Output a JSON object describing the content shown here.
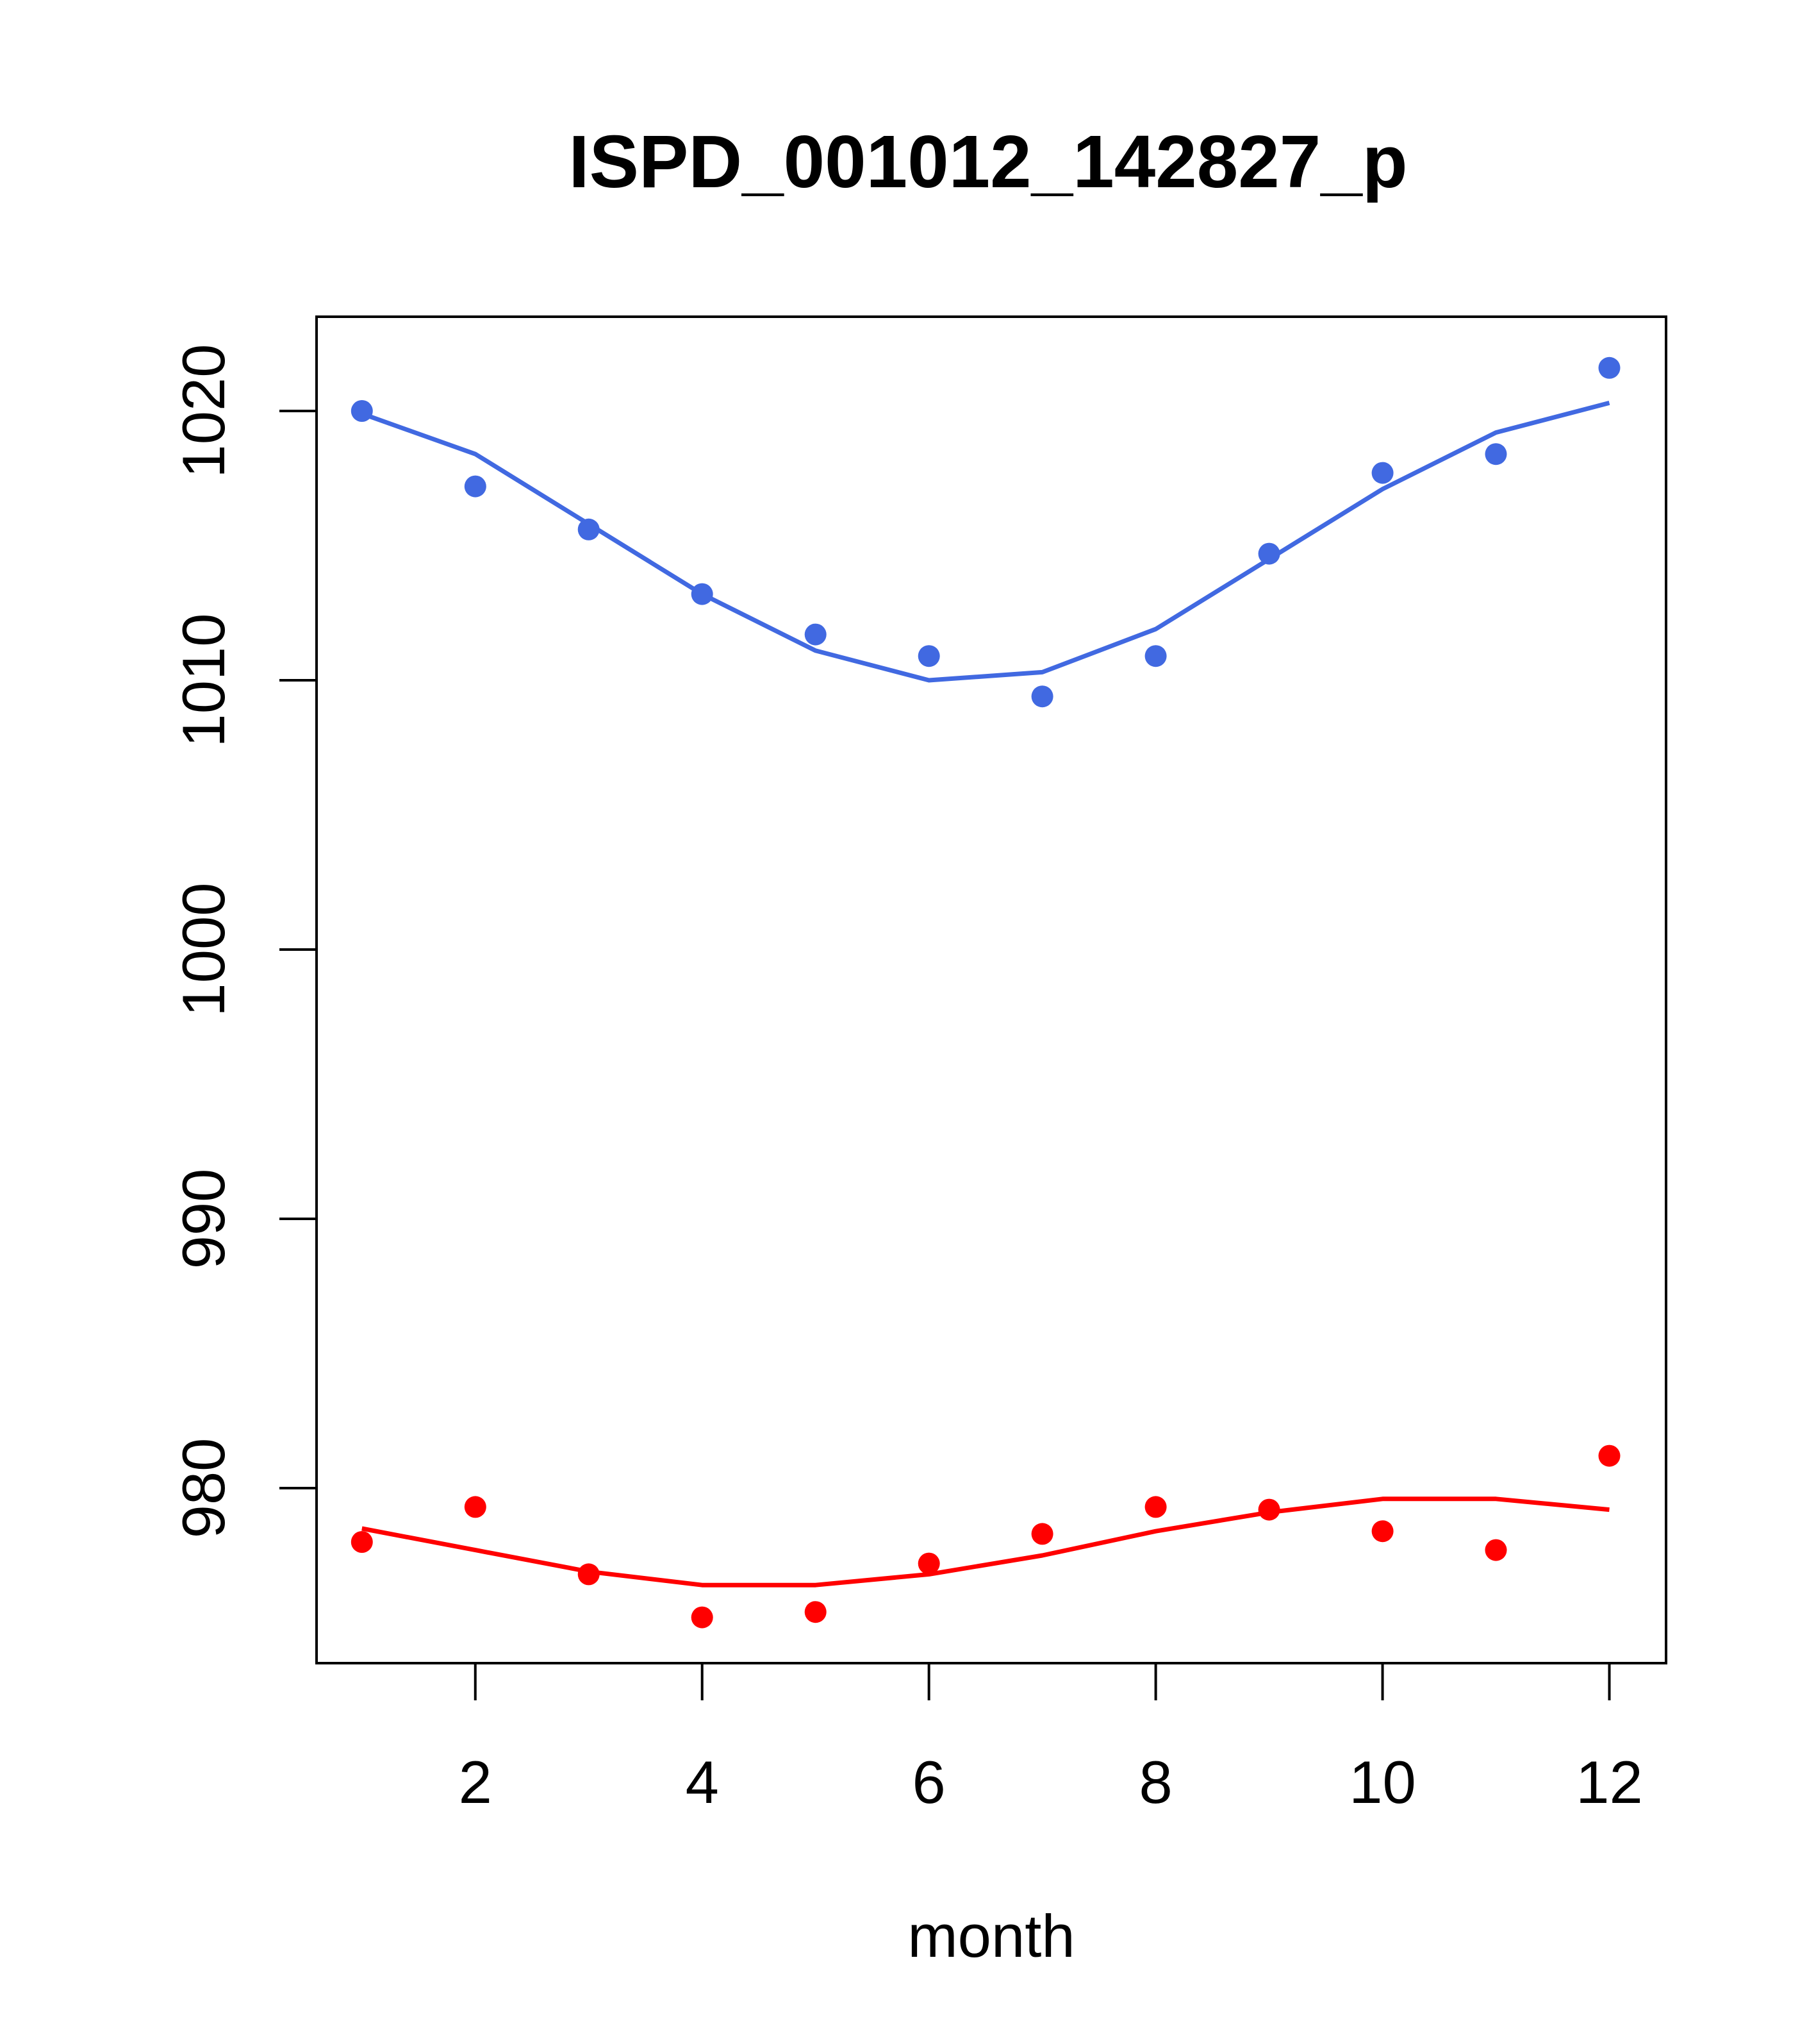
{
  "chart_data": {
    "type": "scatter",
    "title": "ISPD_001012_142827_p",
    "xlabel": "month",
    "ylabel": "",
    "xlim": [
      0.6,
      12.5
    ],
    "ylim": [
      973.5,
      1023.5
    ],
    "xticks": [
      2,
      4,
      6,
      8,
      10,
      12
    ],
    "yticks": [
      980,
      990,
      1000,
      1010,
      1020
    ],
    "grid": false,
    "legend": "none",
    "series": [
      {
        "color": "#4169E1",
        "points_x": [
          1,
          2,
          3,
          4,
          5,
          6,
          7,
          8,
          9,
          10,
          11,
          12
        ],
        "points_y": [
          1020.0,
          1017.2,
          1015.6,
          1013.2,
          1011.7,
          1010.9,
          1009.4,
          1010.9,
          1014.7,
          1017.7,
          1018.4,
          1021.6
        ],
        "line_x": [
          1,
          2,
          3,
          4,
          5,
          6,
          7,
          8,
          9,
          10,
          11,
          12
        ],
        "line_y": [
          1019.9,
          1018.4,
          1015.8,
          1013.2,
          1011.1,
          1010.0,
          1010.3,
          1011.9,
          1014.5,
          1017.1,
          1019.2,
          1020.3
        ]
      },
      {
        "color": "#FF0000",
        "points_x": [
          1,
          2,
          3,
          4,
          5,
          6,
          7,
          8,
          9,
          10,
          11,
          12
        ],
        "points_y": [
          978.0,
          979.3,
          976.8,
          975.2,
          975.4,
          977.2,
          978.3,
          979.3,
          979.2,
          978.4,
          977.7,
          981.2
        ],
        "line_x": [
          1,
          2,
          3,
          4,
          5,
          6,
          7,
          8,
          9,
          10,
          11,
          12
        ],
        "line_y": [
          978.5,
          977.7,
          976.9,
          976.4,
          976.4,
          976.8,
          977.5,
          978.4,
          979.1,
          979.6,
          979.6,
          979.2
        ]
      }
    ]
  }
}
